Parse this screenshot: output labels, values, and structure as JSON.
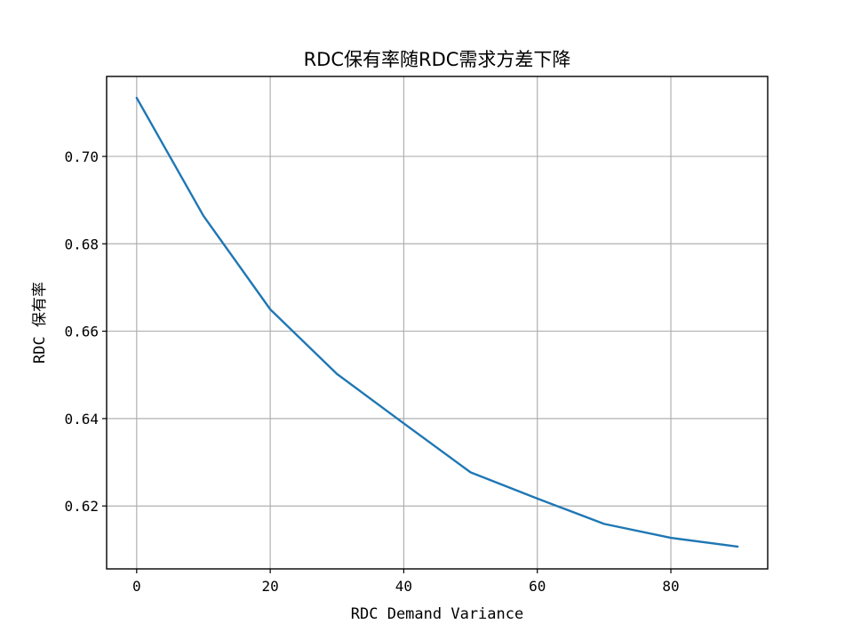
{
  "chart_data": {
    "type": "line",
    "title": "RDC保有率随RDC需求方差下降",
    "xlabel": "RDC Demand Variance",
    "ylabel": "RDC 保有率",
    "x": [
      0,
      10,
      20,
      30,
      40,
      50,
      60,
      70,
      80,
      90
    ],
    "series": [
      {
        "values": [
          0.7134,
          0.6864,
          0.665,
          0.6502,
          0.6389,
          0.6277,
          0.6217,
          0.6159,
          0.6127,
          0.6107
        ],
        "color": "#1f77b4"
      }
    ],
    "xlim": [
      -4.5,
      94.5
    ],
    "ylim": [
      0.6056,
      0.7183
    ],
    "xticks": [
      0,
      20,
      40,
      60,
      80
    ],
    "yticks": [
      0.62,
      0.64,
      0.66,
      0.68,
      0.7
    ],
    "grid": true,
    "legend": false
  }
}
